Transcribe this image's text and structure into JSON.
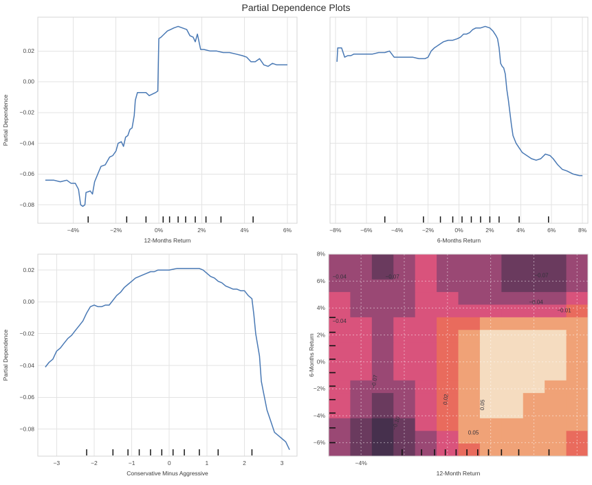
{
  "title": "Partial Dependence Plots",
  "style": {
    "line_color": "#4878b4",
    "grid_color": "#e3e3e3",
    "border_color": "#d6d6d6",
    "tick_color": "#4a4a4a",
    "label_color": "#3a3a3a",
    "rug_color": "#141414",
    "heat_grid_color": "rgba(255,255,255,0.5)"
  },
  "chart_data": [
    {
      "type": "line",
      "name": "pdp-12-months-return",
      "title": "",
      "xlabel": "12-Months Return",
      "ylabel": "Partial Dependence",
      "xlim": [
        -5.65,
        6.45
      ],
      "ylim": [
        -0.092,
        0.042
      ],
      "x_ticks": [
        {
          "v": -4,
          "label": "−4%"
        },
        {
          "v": -2,
          "label": "−2%"
        },
        {
          "v": 0,
          "label": "0%"
        },
        {
          "v": 2,
          "label": "2%"
        },
        {
          "v": 4,
          "label": "4%"
        },
        {
          "v": 6,
          "label": "6%"
        }
      ],
      "y_ticks": [
        {
          "v": 0.02,
          "label": "0.02"
        },
        {
          "v": 0.0,
          "label": "0.00"
        },
        {
          "v": -0.02,
          "label": "−0.02"
        },
        {
          "v": -0.04,
          "label": "−0.04"
        },
        {
          "v": -0.06,
          "label": "−0.06"
        },
        {
          "v": -0.08,
          "label": "−0.08"
        }
      ],
      "x": [
        -5.3,
        -4.9,
        -4.6,
        -4.3,
        -4.1,
        -3.9,
        -3.75,
        -3.65,
        -3.55,
        -3.45,
        -3.4,
        -3.2,
        -3.1,
        -3.0,
        -2.85,
        -2.7,
        -2.5,
        -2.3,
        -2.15,
        -2.0,
        -1.9,
        -1.75,
        -1.65,
        -1.55,
        -1.45,
        -1.35,
        -1.25,
        -1.15,
        -1.1,
        -1.0,
        -0.8,
        -0.6,
        -0.45,
        -0.3,
        -0.15,
        -0.05,
        0.0,
        0.1,
        0.25,
        0.4,
        0.55,
        0.7,
        0.9,
        1.1,
        1.3,
        1.45,
        1.6,
        1.7,
        1.8,
        1.95,
        2.1,
        2.4,
        2.7,
        3.0,
        3.3,
        3.6,
        3.9,
        4.1,
        4.3,
        4.5,
        4.7,
        4.9,
        5.1,
        5.3,
        5.5,
        5.8,
        6.0
      ],
      "y": [
        -0.064,
        -0.064,
        -0.065,
        -0.064,
        -0.066,
        -0.066,
        -0.07,
        -0.08,
        -0.081,
        -0.08,
        -0.072,
        -0.071,
        -0.073,
        -0.065,
        -0.06,
        -0.055,
        -0.054,
        -0.049,
        -0.048,
        -0.045,
        -0.04,
        -0.039,
        -0.042,
        -0.036,
        -0.035,
        -0.031,
        -0.03,
        -0.022,
        -0.012,
        -0.007,
        -0.007,
        -0.007,
        -0.009,
        -0.008,
        -0.007,
        -0.006,
        0.028,
        0.029,
        0.031,
        0.033,
        0.034,
        0.035,
        0.036,
        0.035,
        0.034,
        0.03,
        0.029,
        0.026,
        0.031,
        0.021,
        0.021,
        0.02,
        0.02,
        0.019,
        0.019,
        0.018,
        0.017,
        0.016,
        0.013,
        0.013,
        0.015,
        0.011,
        0.01,
        0.012,
        0.011,
        0.011,
        0.011
      ],
      "rug": [
        -3.3,
        -1.5,
        -0.6,
        0.2,
        0.5,
        0.9,
        1.25,
        1.7,
        2.2,
        2.9,
        4.4
      ]
    },
    {
      "type": "line",
      "name": "pdp-6-months-return",
      "title": "",
      "xlabel": "6-Months Return",
      "ylabel": "",
      "xlim": [
        -8.35,
        8.35
      ],
      "ylim": [
        -0.092,
        0.042
      ],
      "x_ticks": [
        {
          "v": -8,
          "label": "−8%"
        },
        {
          "v": -6,
          "label": "−6%"
        },
        {
          "v": -4,
          "label": "−4%"
        },
        {
          "v": -2,
          "label": "−2%"
        },
        {
          "v": 0,
          "label": "0%"
        },
        {
          "v": 2,
          "label": "2%"
        },
        {
          "v": 4,
          "label": "4%"
        },
        {
          "v": 6,
          "label": "6%"
        },
        {
          "v": 8,
          "label": "8%"
        }
      ],
      "y_ticks": [
        {
          "v": 0.02,
          "label": ""
        },
        {
          "v": 0.0,
          "label": ""
        },
        {
          "v": -0.02,
          "label": ""
        },
        {
          "v": -0.04,
          "label": ""
        },
        {
          "v": -0.06,
          "label": ""
        },
        {
          "v": -0.08,
          "label": ""
        }
      ],
      "x": [
        -7.9,
        -7.85,
        -7.6,
        -7.4,
        -7.2,
        -7.0,
        -6.8,
        -6.5,
        -6.2,
        -6.0,
        -5.6,
        -5.2,
        -4.8,
        -4.5,
        -4.2,
        -3.8,
        -3.4,
        -3.0,
        -2.6,
        -2.2,
        -2.0,
        -1.8,
        -1.6,
        -1.3,
        -1.0,
        -0.7,
        -0.4,
        -0.1,
        0.1,
        0.3,
        0.5,
        0.7,
        0.9,
        1.1,
        1.4,
        1.7,
        2.0,
        2.2,
        2.4,
        2.5,
        2.6,
        2.7,
        2.8,
        2.9,
        3.0,
        3.1,
        3.2,
        3.3,
        3.4,
        3.5,
        3.7,
        3.9,
        4.1,
        4.4,
        4.7,
        5.0,
        5.3,
        5.6,
        5.9,
        6.1,
        6.4,
        6.7,
        7.0,
        7.4,
        7.8,
        8.0
      ],
      "y": [
        0.013,
        0.022,
        0.022,
        0.016,
        0.017,
        0.017,
        0.018,
        0.018,
        0.018,
        0.018,
        0.018,
        0.019,
        0.019,
        0.02,
        0.016,
        0.016,
        0.016,
        0.016,
        0.015,
        0.015,
        0.016,
        0.02,
        0.022,
        0.024,
        0.026,
        0.027,
        0.027,
        0.028,
        0.029,
        0.031,
        0.031,
        0.032,
        0.034,
        0.035,
        0.035,
        0.036,
        0.035,
        0.033,
        0.03,
        0.028,
        0.022,
        0.012,
        0.01,
        0.009,
        0.005,
        -0.005,
        -0.012,
        -0.02,
        -0.028,
        -0.035,
        -0.04,
        -0.043,
        -0.046,
        -0.048,
        -0.05,
        -0.051,
        -0.05,
        -0.047,
        -0.048,
        -0.05,
        -0.054,
        -0.057,
        -0.058,
        -0.06,
        -0.061,
        -0.061
      ],
      "rug": [
        -4.8,
        -2.3,
        -1.2,
        -0.4,
        0.2,
        0.8,
        1.4,
        2.0,
        2.6,
        3.9,
        5.8
      ]
    },
    {
      "type": "line",
      "name": "pdp-conservative-minus-aggressive",
      "title": "",
      "xlabel": "Conservative Minus Aggressive",
      "ylabel": "Partial Dependence",
      "xlim": [
        -3.5,
        3.4
      ],
      "ylim": [
        -0.097,
        0.03
      ],
      "x_ticks": [
        {
          "v": -3,
          "label": "−3"
        },
        {
          "v": -2,
          "label": "−2"
        },
        {
          "v": -1,
          "label": "−1"
        },
        {
          "v": 0,
          "label": "0"
        },
        {
          "v": 1,
          "label": "1"
        },
        {
          "v": 2,
          "label": "2"
        },
        {
          "v": 3,
          "label": "3"
        }
      ],
      "y_ticks": [
        {
          "v": 0.02,
          "label": "0.02"
        },
        {
          "v": 0.0,
          "label": "0.00"
        },
        {
          "v": -0.02,
          "label": "−0.02"
        },
        {
          "v": -0.04,
          "label": "−0.04"
        },
        {
          "v": -0.06,
          "label": "−0.06"
        },
        {
          "v": -0.08,
          "label": "−0.08"
        }
      ],
      "x": [
        -3.3,
        -3.2,
        -3.1,
        -3.0,
        -2.9,
        -2.8,
        -2.7,
        -2.6,
        -2.5,
        -2.4,
        -2.3,
        -2.2,
        -2.1,
        -2.0,
        -1.9,
        -1.8,
        -1.7,
        -1.6,
        -1.5,
        -1.4,
        -1.3,
        -1.2,
        -1.1,
        -1.0,
        -0.9,
        -0.8,
        -0.7,
        -0.6,
        -0.5,
        -0.4,
        -0.3,
        -0.2,
        0.0,
        0.2,
        0.4,
        0.6,
        0.8,
        0.9,
        1.0,
        1.1,
        1.2,
        1.3,
        1.4,
        1.5,
        1.6,
        1.7,
        1.8,
        1.9,
        2.0,
        2.1,
        2.2,
        2.25,
        2.3,
        2.4,
        2.45,
        2.5,
        2.6,
        2.7,
        2.8,
        2.9,
        3.0,
        3.1,
        3.2
      ],
      "y": [
        -0.041,
        -0.038,
        -0.036,
        -0.031,
        -0.029,
        -0.026,
        -0.023,
        -0.021,
        -0.018,
        -0.015,
        -0.012,
        -0.007,
        -0.003,
        -0.002,
        -0.003,
        -0.003,
        -0.002,
        -0.002,
        0.001,
        0.004,
        0.006,
        0.009,
        0.011,
        0.013,
        0.015,
        0.016,
        0.017,
        0.018,
        0.019,
        0.019,
        0.02,
        0.02,
        0.02,
        0.021,
        0.021,
        0.021,
        0.021,
        0.02,
        0.018,
        0.016,
        0.015,
        0.013,
        0.012,
        0.01,
        0.009,
        0.008,
        0.008,
        0.007,
        0.007,
        0.004,
        0.002,
        -0.008,
        -0.02,
        -0.034,
        -0.05,
        -0.056,
        -0.068,
        -0.075,
        -0.082,
        -0.084,
        -0.086,
        -0.088,
        -0.093
      ],
      "rug": [
        -2.2,
        -1.5,
        -1.1,
        -0.8,
        -0.5,
        -0.2,
        0.1,
        0.4,
        0.8,
        1.3,
        2.2
      ]
    },
    {
      "type": "heatmap",
      "name": "pdp-interaction-contour",
      "title": "",
      "xlabel": "12-Month Return",
      "ylabel": "6-Months Return",
      "xlim": [
        -5.5,
        6.5
      ],
      "ylim": [
        -7,
        8
      ],
      "x_ticks": [
        {
          "v": -4,
          "label": "−4%"
        }
      ],
      "x_grid": [
        -4,
        -2,
        0,
        2,
        4,
        6
      ],
      "y_ticks": [
        {
          "v": 8,
          "label": "8%"
        },
        {
          "v": 6,
          "label": "6%"
        },
        {
          "v": 4,
          "label": "4%"
        },
        {
          "v": 2,
          "label": "2%"
        },
        {
          "v": 0,
          "label": "0%"
        },
        {
          "v": -2,
          "label": "−2%"
        },
        {
          "v": -4,
          "label": "−4%"
        },
        {
          "v": -6,
          "label": "−6%"
        }
      ],
      "levels": [
        -0.1,
        -0.07,
        -0.04,
        -0.01,
        0.02,
        0.05
      ],
      "band_colors": [
        "#46304d",
        "#6a3a5e",
        "#9a4874",
        "#d9537c",
        "#e96b5d",
        "#f0a277",
        "#f5dcc0"
      ],
      "grid": [
        [
          -0.055,
          -0.06,
          -0.075,
          -0.065,
          -0.03,
          -0.05,
          -0.055,
          -0.06,
          -0.08,
          -0.08,
          -0.08,
          -0.06
        ],
        [
          -0.05,
          -0.06,
          -0.078,
          -0.065,
          -0.03,
          -0.05,
          -0.055,
          -0.06,
          -0.08,
          -0.08,
          -0.08,
          -0.06
        ],
        [
          -0.045,
          -0.055,
          -0.07,
          -0.06,
          -0.028,
          -0.045,
          -0.05,
          -0.055,
          -0.078,
          -0.08,
          -0.078,
          -0.055
        ],
        [
          -0.04,
          -0.05,
          -0.065,
          -0.055,
          -0.028,
          -0.04,
          -0.045,
          -0.045,
          -0.06,
          -0.06,
          -0.055,
          -0.04
        ],
        [
          -0.035,
          -0.045,
          -0.055,
          -0.045,
          -0.025,
          -0.035,
          -0.035,
          -0.03,
          -0.03,
          -0.028,
          -0.02,
          -0.005
        ],
        [
          -0.03,
          -0.035,
          -0.045,
          -0.035,
          -0.02,
          -0.005,
          0.015,
          0.03,
          0.04,
          0.045,
          0.045,
          0.02
        ],
        [
          -0.025,
          -0.032,
          -0.042,
          -0.032,
          -0.015,
          0.005,
          0.03,
          0.055,
          0.06,
          0.06,
          0.055,
          0.035
        ],
        [
          -0.025,
          -0.032,
          -0.045,
          -0.032,
          -0.015,
          0.005,
          0.03,
          0.06,
          0.06,
          0.06,
          0.055,
          0.035
        ],
        [
          -0.025,
          -0.035,
          -0.05,
          -0.035,
          -0.018,
          0.005,
          0.03,
          0.06,
          0.06,
          0.06,
          0.055,
          0.035
        ],
        [
          -0.03,
          -0.04,
          -0.055,
          -0.04,
          -0.02,
          0.0,
          0.03,
          0.06,
          0.06,
          0.055,
          0.05,
          0.035
        ],
        [
          -0.032,
          -0.045,
          -0.065,
          -0.05,
          -0.025,
          0.0,
          0.03,
          0.055,
          0.055,
          0.05,
          0.045,
          0.03
        ],
        [
          -0.035,
          -0.055,
          -0.075,
          -0.055,
          -0.03,
          -0.005,
          0.025,
          0.05,
          0.05,
          0.045,
          0.04,
          0.03
        ],
        [
          -0.04,
          -0.065,
          -0.09,
          -0.065,
          -0.035,
          -0.008,
          0.025,
          0.05,
          0.05,
          0.04,
          0.035,
          0.025
        ],
        [
          -0.05,
          -0.08,
          -0.105,
          -0.075,
          -0.04,
          -0.01,
          0.02,
          0.045,
          0.045,
          0.035,
          0.03,
          0.02
        ],
        [
          -0.055,
          -0.09,
          -0.11,
          -0.08,
          -0.045,
          -0.012,
          0.02,
          0.04,
          0.035,
          0.03,
          0.025,
          0.018
        ],
        [
          -0.06,
          -0.095,
          -0.115,
          -0.085,
          -0.05,
          -0.015,
          0.015,
          0.035,
          0.03,
          0.025,
          0.02,
          0.015
        ]
      ],
      "labels": [
        {
          "text": "−0.04",
          "x": -5.0,
          "y": 6.2,
          "rot": 0
        },
        {
          "text": "−0.07",
          "x": -2.55,
          "y": 6.2,
          "rot": 0
        },
        {
          "text": "−0.07",
          "x": 4.35,
          "y": 6.3,
          "rot": 0
        },
        {
          "text": "−0.04",
          "x": 4.1,
          "y": 4.3,
          "rot": 0
        },
        {
          "text": "−0.01",
          "x": 5.4,
          "y": 3.7,
          "rot": 0
        },
        {
          "text": "−0.04",
          "x": -5.0,
          "y": 2.9,
          "rot": 0
        },
        {
          "text": "−0.07",
          "x": -3.3,
          "y": -1.5,
          "rot": -80
        },
        {
          "text": "−0.10",
          "x": -2.3,
          "y": -4.6,
          "rot": -72
        },
        {
          "text": "0.02",
          "x": 0.0,
          "y": -2.8,
          "rot": -84
        },
        {
          "text": "0.05",
          "x": 1.7,
          "y": -3.2,
          "rot": -88
        },
        {
          "text": "0.05",
          "x": 1.2,
          "y": -5.4,
          "rot": 0
        }
      ],
      "rug_x": [
        -2.1,
        -1.2,
        -0.6,
        -0.1,
        0.4,
        0.9,
        1.4,
        1.9,
        2.5,
        3.3,
        4.7
      ],
      "rug_y": [
        3.3,
        2.2,
        1.2,
        0.2,
        -0.8,
        -1.8,
        -2.8,
        -3.8,
        -4.9,
        -6.0
      ]
    }
  ]
}
